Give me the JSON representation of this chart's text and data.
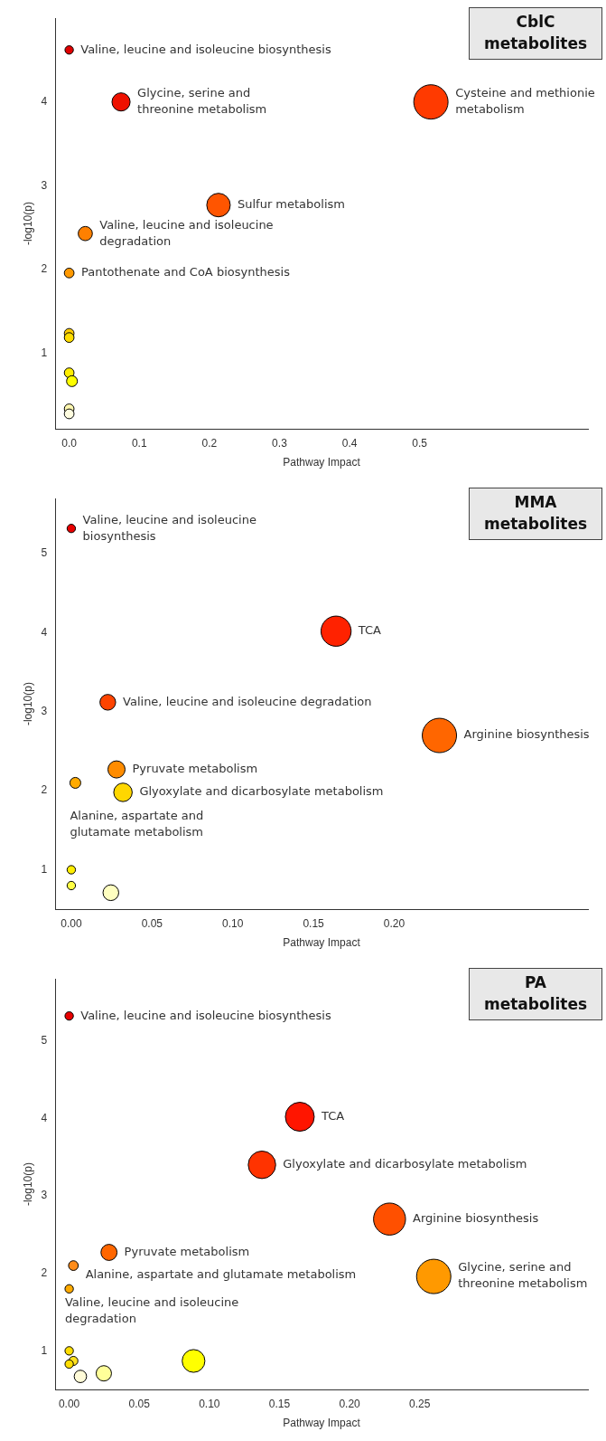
{
  "chart_data": [
    {
      "type": "bubble",
      "title": "CblC metabolites",
      "xlabel": "Pathway Impact",
      "ylabel": "-log10(p)",
      "marker": "circle",
      "legend": false,
      "grid": false,
      "x": [
        0,
        0.074,
        0.516,
        0.213,
        0.023,
        0,
        0,
        0,
        0,
        0.004,
        0,
        0
      ],
      "values": [
        4.62,
        4.0,
        4.0,
        2.77,
        2.43,
        1.96,
        1.24,
        1.19,
        0.77,
        0.67,
        0.34,
        0.28
      ],
      "sizes": [
        0.06,
        0.28,
        1,
        0.47,
        0.17,
        0.08,
        0.08,
        0.08,
        0.08,
        0.1,
        0.08,
        0.08
      ],
      "colors": [
        "#e00000",
        "#ee1100",
        "#ff3a00",
        "#ff5500",
        "#ff8000",
        "#ff9900",
        "#ffcc00",
        "#ffdd00",
        "#ffee00",
        "#ffff00",
        "#fff8b0",
        "#fffde0"
      ],
      "xlim": [
        -0.02,
        0.74
      ],
      "ylim": [
        0.1,
        5.0
      ],
      "xticks": [
        {
          "value": 0,
          "label": "0.0"
        },
        0.1,
        0.2,
        0.3,
        0.4,
        0.5
      ],
      "yticks": [
        1,
        2,
        3,
        4
      ],
      "annotations": [
        {
          "text": "Valine, leucine and isoleucine biosynthesis",
          "x": 0,
          "y": 4.62
        },
        {
          "text": "Glycine, serine and\nthreonine metabolism",
          "x": 0.074,
          "y": 4.0
        },
        {
          "text": "Cysteine and methionie\nmetabolism",
          "x": 0.516,
          "y": 4.0
        },
        {
          "text": "Sulfur metabolism",
          "x": 0.213,
          "y": 2.77
        },
        {
          "text": "Valine, leucine and isoleucine\ndegradation",
          "x": 0.023,
          "y": 2.43
        },
        {
          "text": "Pantothenate and CoA biosynthesis",
          "x": 0,
          "y": 1.96
        }
      ]
    },
    {
      "type": "bubble",
      "title": "MMA metabolites",
      "xlabel": "Pathway Impact",
      "ylabel": "-log10(p)",
      "marker": "circle",
      "legend": false,
      "grid": false,
      "x": [
        0,
        0.164,
        0.0226,
        0.228,
        0.028,
        0.0025,
        0.032,
        0,
        0,
        0.0245
      ],
      "values": [
        5.32,
        4.02,
        3.12,
        2.7,
        2.27,
        2.1,
        1.98,
        1.0,
        0.8,
        0.71
      ],
      "sizes": [
        0.06,
        0.77,
        0.21,
        1,
        0.25,
        0.1,
        0.29,
        0.06,
        0.06,
        0.21
      ],
      "colors": [
        "#e80000",
        "#ff2200",
        "#ff4400",
        "#ff6600",
        "#ff8c00",
        "#ffaa00",
        "#ffd700",
        "#ffee00",
        "#ffff44",
        "#ffffc0"
      ],
      "xlim": [
        -0.01,
        0.32
      ],
      "ylim": [
        0.5,
        5.7
      ],
      "xticks": [
        {
          "value": 0,
          "label": "0.00"
        },
        0.05,
        {
          "value": 0.1,
          "label": "0.10"
        },
        0.15,
        {
          "value": 0.2,
          "label": "0.20"
        }
      ],
      "yticks": [
        1,
        2,
        3,
        4,
        5
      ],
      "annotations": [
        {
          "text": "Valine, leucine and isoleucine\nbiosynthesis",
          "x": 0,
          "y": 5.32
        },
        {
          "text": "TCA",
          "x": 0.164,
          "y": 4.02
        },
        {
          "text": "Valine, leucine and isoleucine degradation",
          "x": 0.0226,
          "y": 3.12
        },
        {
          "text": "Arginine biosynthesis",
          "x": 0.228,
          "y": 2.7
        },
        {
          "text": "Pyruvate metabolism",
          "x": 0.028,
          "y": 2.27
        },
        {
          "text": "Glyoxylate and dicarbosylate metabolism",
          "x": 0.032,
          "y": 1.98
        },
        {
          "text": "Alanine, aspartate and\nglutamate metabolism",
          "x": 0.0025,
          "y": 2.1
        }
      ]
    },
    {
      "type": "bubble",
      "title": "PA metabolites",
      "xlabel": "Pathway Impact",
      "ylabel": "-log10(p)",
      "marker": "circle",
      "legend": false,
      "grid": false,
      "x": [
        0,
        0.1645,
        0.1375,
        0.2285,
        0.26,
        0.0284,
        0.003,
        0,
        0,
        0.003,
        0,
        0.008,
        0.0247,
        0.0887
      ],
      "values": [
        5.32,
        4.02,
        3.4,
        2.7,
        1.96,
        2.27,
        2.1,
        1.8,
        1.0,
        0.87,
        0.83,
        0.67,
        0.71,
        0.87
      ],
      "sizes": [
        0.06,
        0.71,
        0.64,
        0.87,
        1,
        0.22,
        0.08,
        0.06,
        0.06,
        0.07,
        0.06,
        0.13,
        0.2,
        0.44
      ],
      "colors": [
        "#e80000",
        "#ff1500",
        "#ff3300",
        "#ff5000",
        "#ff9900",
        "#ff6600",
        "#ff8c1a",
        "#ffaa00",
        "#ffdd00",
        "#ffe020",
        "#ffdd00",
        "#fffbd8",
        "#ffff99",
        "#ffff00"
      ],
      "xlim": [
        -0.01,
        0.37
      ],
      "ylim": [
        0.5,
        5.8
      ],
      "xticks": [
        {
          "value": 0,
          "label": "0.00"
        },
        0.05,
        {
          "value": 0.1,
          "label": "0.10"
        },
        0.15,
        {
          "value": 0.2,
          "label": "0.20"
        },
        0.25
      ],
      "yticks": [
        1,
        2,
        3,
        4,
        5
      ],
      "annotations": [
        {
          "text": "Valine, leucine and isoleucine biosynthesis",
          "x": 0,
          "y": 5.32
        },
        {
          "text": "TCA",
          "x": 0.1645,
          "y": 4.02
        },
        {
          "text": "Glyoxylate and dicarbosylate metabolism",
          "x": 0.1375,
          "y": 3.4
        },
        {
          "text": "Arginine biosynthesis",
          "x": 0.2285,
          "y": 2.7
        },
        {
          "text": "Glycine, serine and\nthreonine metabolism",
          "x": 0.26,
          "y": 1.96
        },
        {
          "text": "Pyruvate metabolism",
          "x": 0.0284,
          "y": 2.27
        },
        {
          "text": "Alanine, aspartate and glutamate metabolism",
          "x": 0.003,
          "y": 2.1
        },
        {
          "text": "Valine, leucine and isoleucine\ndegradation",
          "x": 0,
          "y": 1.8
        }
      ]
    }
  ]
}
